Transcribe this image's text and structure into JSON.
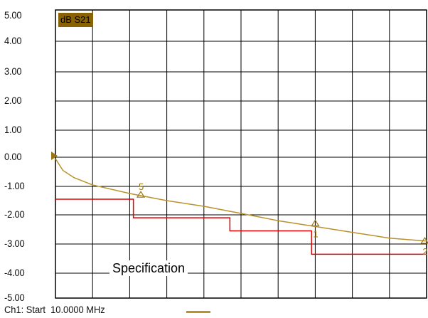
{
  "chart_data": {
    "type": "line",
    "title": "",
    "xlabel": "",
    "ylabel": "",
    "ylim": [
      -5,
      5
    ],
    "y_tick_labels": [
      "5.00",
      "4.00",
      "3.00",
      "2.00",
      "1.00",
      "0.00",
      "-1.00",
      "-2.00",
      "-3.00",
      "-4.00",
      "-5.00"
    ],
    "y_tick_values": [
      5,
      4,
      3,
      2,
      1,
      0,
      -1,
      -2,
      -3,
      -4,
      -5
    ],
    "x_divisions": 10,
    "grid": true,
    "trace_label": "dB S21",
    "trace_color": "#b9922a",
    "series": [
      {
        "color": "#b9922a",
        "x": [
          0,
          0.02,
          0.05,
          0.1,
          0.2,
          0.3,
          0.4,
          0.5,
          0.6,
          0.7,
          0.8,
          0.9,
          1.0
        ],
        "y": [
          -0.05,
          -0.45,
          -0.7,
          -0.95,
          -1.25,
          -1.5,
          -1.7,
          -1.95,
          -2.2,
          -2.4,
          -2.6,
          -2.8,
          -2.9
        ]
      }
    ],
    "spec": {
      "label": "Specification",
      "color": "#e00000",
      "x": [
        0,
        0.21,
        0.21,
        0.47,
        0.47,
        0.69,
        0.69,
        1.0
      ],
      "y": [
        -1.45,
        -1.45,
        -2.1,
        -2.1,
        -2.55,
        -2.55,
        -3.35,
        -3.35
      ]
    },
    "markers": [
      {
        "label": "5",
        "x": 0.23,
        "y": -1.28
      },
      {
        "label": "1",
        "x": 0.7,
        "y": -2.28
      },
      {
        "label": "2",
        "x": 0.995,
        "y": -2.88
      }
    ],
    "footer": {
      "channel_text": "Ch1: Start  10.0000 MHz"
    }
  }
}
